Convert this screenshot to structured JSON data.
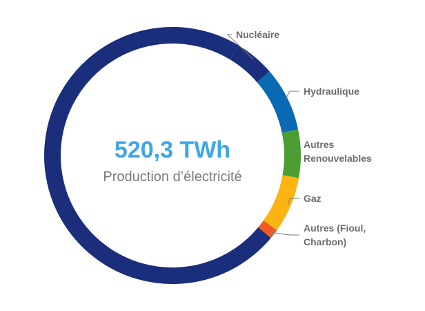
{
  "chart_data": {
    "type": "pie",
    "style": "donut",
    "center_value": "520,3 TWh",
    "center_label": "Production d’électricité",
    "unit": "TWh",
    "total": 520.3,
    "slices": [
      {
        "name": "Nucléaire",
        "label_lines": [
          "Nucléaire"
        ],
        "value": 0.05,
        "color": "#1a2e7c",
        "role": "rest"
      },
      {
        "name": "Hydraulique",
        "label_lines": [
          "Hydraulique"
        ],
        "value": 0.08,
        "color": "#0a6ab4"
      },
      {
        "name": "Autres Renouvelables",
        "label_lines": [
          "Autres",
          "Renouvelables"
        ],
        "value": 0.06,
        "color": "#4a9e32"
      },
      {
        "name": "Gaz",
        "label_lines": [
          "Gaz"
        ],
        "value": 0.07,
        "color": "#fbb411"
      },
      {
        "name": "Autres (Fioul, Charbon)",
        "label_lines": [
          "Autres (Fioul,",
          "Charbon)"
        ],
        "value": 0.012,
        "color": "#f05a23"
      },
      {
        "name": "Nucléaire",
        "label_lines": [],
        "value": 0.718,
        "color": "#1a2e7c",
        "role": "main"
      }
    ]
  }
}
